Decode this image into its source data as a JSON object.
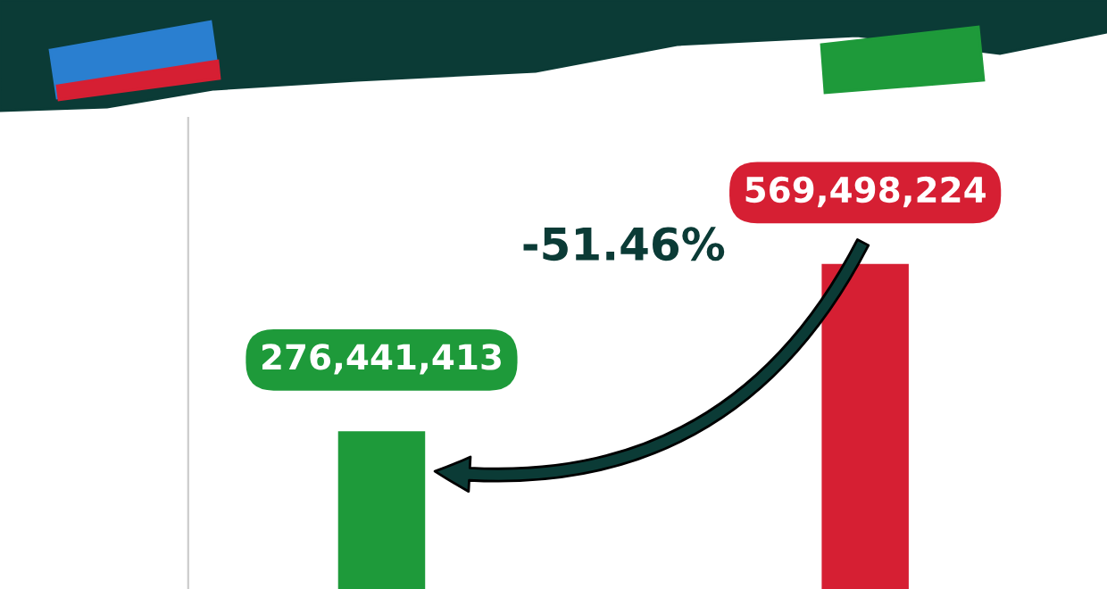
{
  "chart_data": {
    "type": "bar",
    "categories": [
      null,
      null
    ],
    "values": [
      276441413,
      569498224
    ],
    "colors": [
      "#1e9a3a",
      "#d61f33"
    ],
    "value_labels": [
      "276,441,413",
      "569,498,224"
    ],
    "annotations": [
      "-51.46%"
    ]
  }
}
